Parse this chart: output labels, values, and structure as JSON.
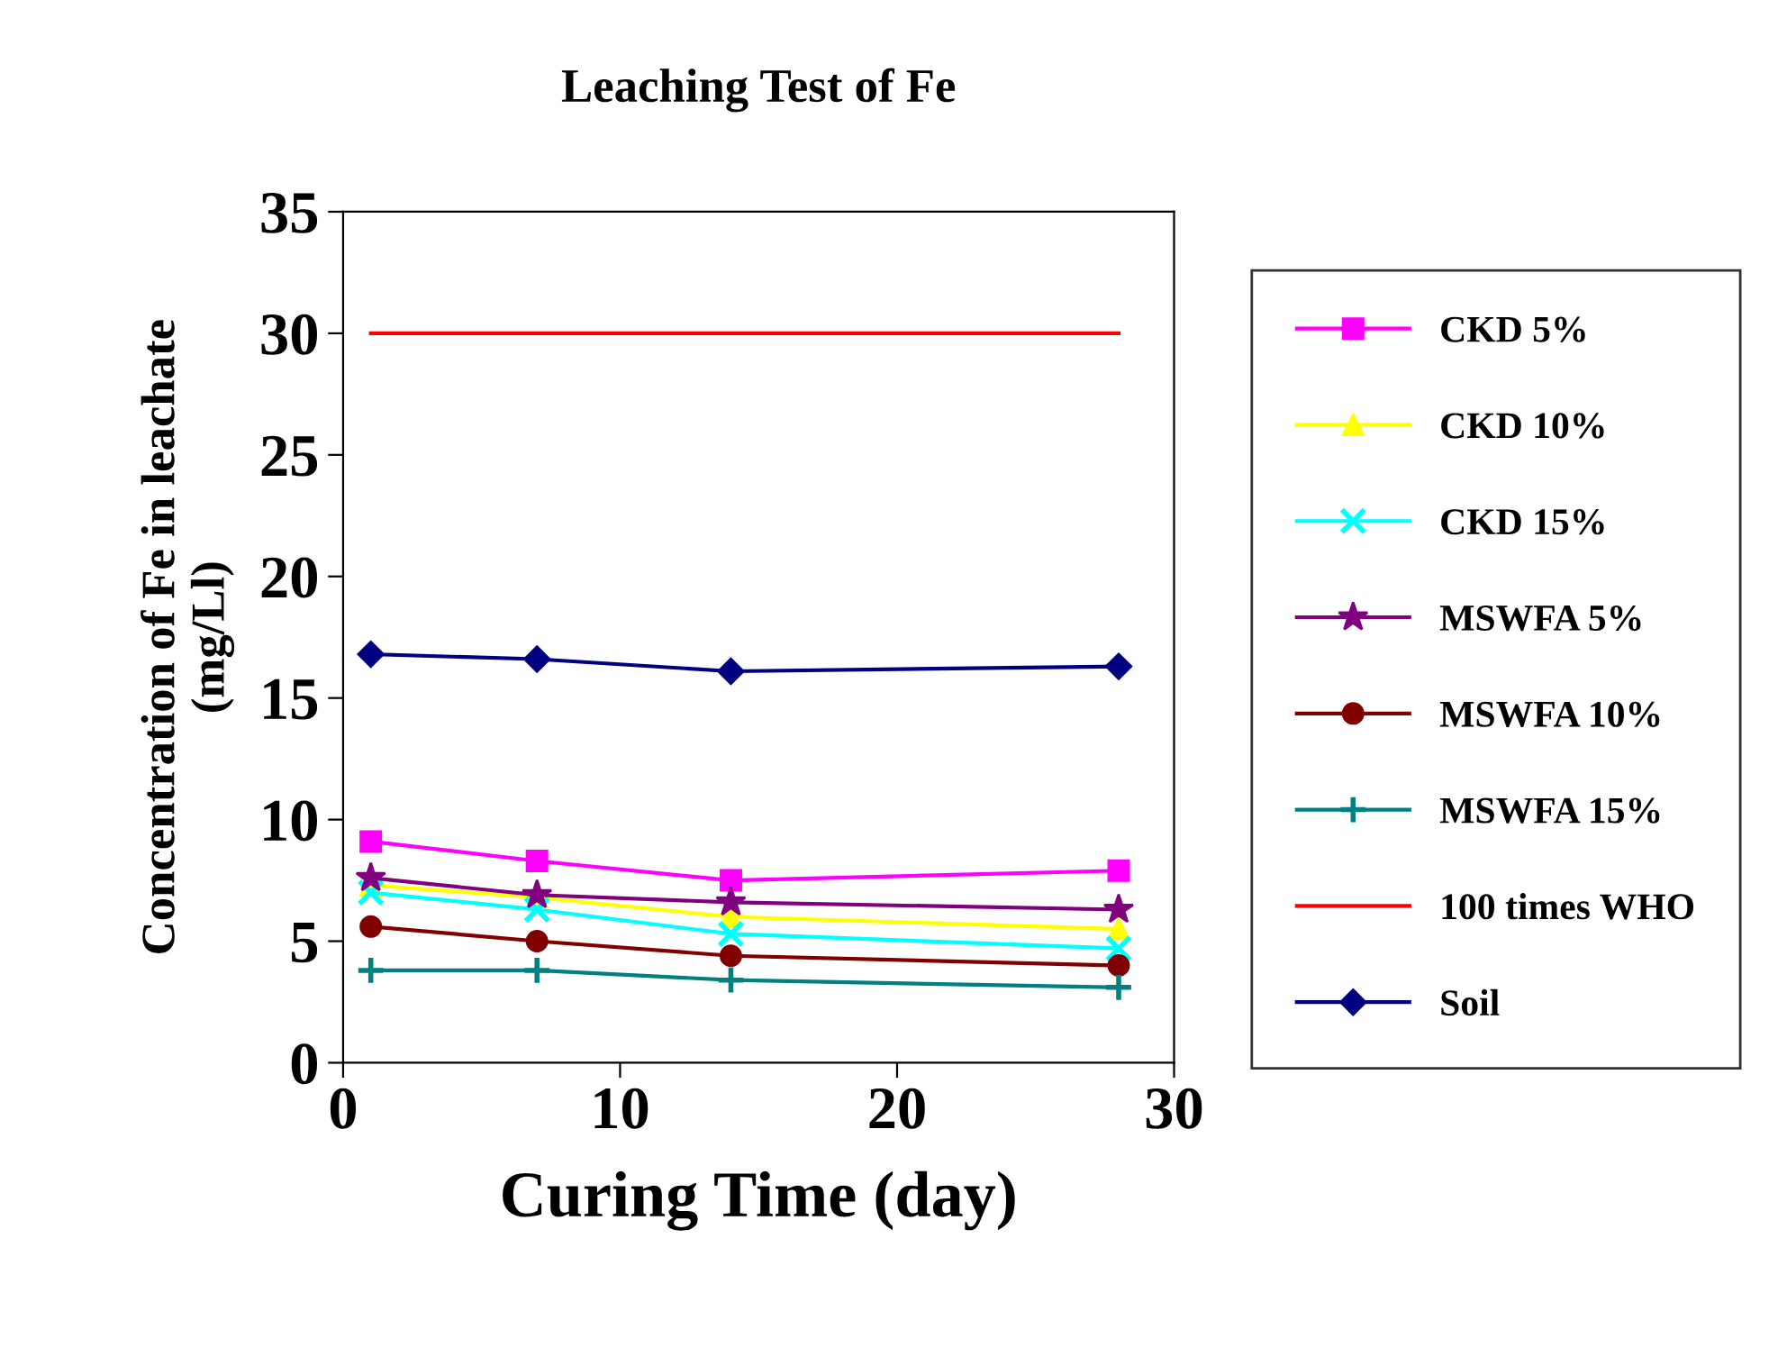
{
  "chart_data": {
    "type": "line",
    "title": "Leaching Test of Fe",
    "xlabel": "Curing Time (day)",
    "ylabel": "Concentration of Fe in leachate\n(mg/Ll)",
    "xlim": [
      0,
      30
    ],
    "xticks": [
      0,
      10,
      20,
      30
    ],
    "ylim": [
      0,
      35
    ],
    "yticks": [
      0,
      5,
      10,
      15,
      20,
      25,
      30,
      35
    ],
    "grid": false,
    "legend": "right",
    "series": [
      {
        "name": "CKD 5%",
        "color": "#ff00ff",
        "marker": "square",
        "x": [
          1,
          7,
          14,
          28
        ],
        "values": [
          9.1,
          8.3,
          7.5,
          7.9
        ]
      },
      {
        "name": "CKD 10%",
        "color": "#ffff00",
        "marker": "triangle",
        "x": [
          1,
          7,
          14,
          28
        ],
        "values": [
          7.3,
          6.8,
          6.0,
          5.5
        ]
      },
      {
        "name": "CKD 15%",
        "color": "#00ffff",
        "marker": "cross",
        "x": [
          1,
          7,
          14,
          28
        ],
        "values": [
          7.0,
          6.3,
          5.3,
          4.7
        ]
      },
      {
        "name": "MSWFA 5%",
        "color": "#800080",
        "marker": "star",
        "x": [
          1,
          7,
          14,
          28
        ],
        "values": [
          7.6,
          6.9,
          6.6,
          6.3
        ]
      },
      {
        "name": "MSWFA 10%",
        "color": "#800000",
        "marker": "circle",
        "x": [
          1,
          7,
          14,
          28
        ],
        "values": [
          5.6,
          5.0,
          4.4,
          4.0
        ]
      },
      {
        "name": "MSWFA 15%",
        "color": "#008080",
        "marker": "plus",
        "x": [
          1,
          7,
          14,
          28
        ],
        "values": [
          3.8,
          3.8,
          3.4,
          3.1
        ]
      },
      {
        "name": "100 times WHO",
        "color": "#ff0000",
        "marker": "none",
        "x": [
          1,
          7,
          14,
          28
        ],
        "values": [
          30,
          30,
          30,
          30
        ]
      },
      {
        "name": "Soil",
        "color": "#000080",
        "marker": "diamond",
        "x": [
          1,
          7,
          14,
          28
        ],
        "values": [
          16.8,
          16.6,
          16.1,
          16.3
        ]
      }
    ]
  }
}
